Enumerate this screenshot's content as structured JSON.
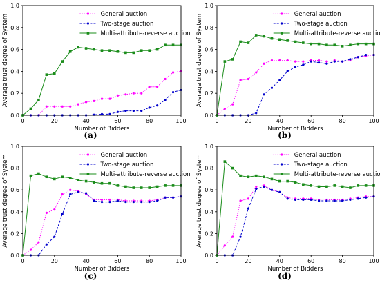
{
  "chart_data": [
    {
      "panel_label": "(a)",
      "type": "line",
      "xlabel": "Number of Bidders",
      "ylabel": "Average trust degree of System",
      "xlim": [
        0,
        100
      ],
      "ylim": [
        0,
        1.0
      ],
      "xticks": [
        0,
        20,
        40,
        60,
        80,
        100
      ],
      "yticks": [
        "0.0",
        "0.2",
        "0.4",
        "0.6",
        "0.8",
        "1.0"
      ],
      "legend_position": "top-right",
      "x": [
        0,
        5,
        10,
        15,
        20,
        25,
        30,
        35,
        40,
        45,
        50,
        55,
        60,
        65,
        70,
        75,
        80,
        85,
        90,
        95,
        100
      ],
      "series": [
        {
          "name": "General auction",
          "color": "#ff00ff",
          "style": "dotted",
          "marker": "circle",
          "values": [
            0.0,
            0.0,
            0.0,
            0.08,
            0.08,
            0.08,
            0.08,
            0.1,
            0.12,
            0.13,
            0.15,
            0.15,
            0.18,
            0.19,
            0.2,
            0.2,
            0.26,
            0.26,
            0.33,
            0.39,
            0.4
          ]
        },
        {
          "name": "Two-stage auction",
          "color": "#0000cc",
          "style": "dashed",
          "marker": "circle",
          "values": [
            0.0,
            0.0,
            0.0,
            0.0,
            0.0,
            0.0,
            0.0,
            0.0,
            0.0,
            0.005,
            0.01,
            0.01,
            0.03,
            0.04,
            0.04,
            0.04,
            0.07,
            0.09,
            0.14,
            0.21,
            0.23
          ]
        },
        {
          "name": "Multi-attribute-reverse auction",
          "color": "#1a8c1a",
          "style": "solid",
          "marker": "square",
          "values": [
            0.0,
            0.06,
            0.14,
            0.37,
            0.38,
            0.49,
            0.58,
            0.62,
            0.61,
            0.6,
            0.59,
            0.59,
            0.58,
            0.57,
            0.57,
            0.59,
            0.59,
            0.6,
            0.64,
            0.64,
            0.64
          ]
        }
      ]
    },
    {
      "panel_label": "(b)",
      "type": "line",
      "xlabel": "Number of Bidders",
      "ylabel": "Average trust degree of System",
      "xlim": [
        0,
        100
      ],
      "ylim": [
        0,
        1.0
      ],
      "xticks": [
        0,
        20,
        40,
        60,
        80,
        100
      ],
      "yticks": [
        "0.0",
        "0.2",
        "0.4",
        "0.6",
        "0.8",
        "1.0"
      ],
      "legend_position": "top-right",
      "x": [
        0,
        5,
        10,
        15,
        20,
        25,
        30,
        35,
        40,
        45,
        50,
        55,
        60,
        65,
        70,
        75,
        80,
        85,
        90,
        95,
        100
      ],
      "series": [
        {
          "name": "General auction",
          "color": "#ff00ff",
          "style": "dotted",
          "marker": "circle",
          "values": [
            0.0,
            0.06,
            0.1,
            0.32,
            0.33,
            0.39,
            0.47,
            0.5,
            0.5,
            0.5,
            0.49,
            0.49,
            0.5,
            0.5,
            0.49,
            0.5,
            0.49,
            0.5,
            0.53,
            0.54,
            0.55
          ]
        },
        {
          "name": "Two-stage auction",
          "color": "#0000cc",
          "style": "dashed",
          "marker": "circle",
          "values": [
            0.0,
            0.0,
            0.0,
            0.0,
            0.0,
            0.02,
            0.19,
            0.25,
            0.32,
            0.4,
            0.44,
            0.46,
            0.49,
            0.48,
            0.47,
            0.49,
            0.49,
            0.51,
            0.53,
            0.55,
            0.55
          ]
        },
        {
          "name": "Multi-attribute-reverse auction",
          "color": "#1a8c1a",
          "style": "solid",
          "marker": "square",
          "values": [
            0.0,
            0.49,
            0.51,
            0.67,
            0.66,
            0.73,
            0.72,
            0.7,
            0.69,
            0.68,
            0.67,
            0.66,
            0.65,
            0.65,
            0.64,
            0.64,
            0.63,
            0.64,
            0.65,
            0.65,
            0.65
          ]
        }
      ]
    },
    {
      "panel_label": "(c)",
      "type": "line",
      "xlabel": "Number of Bidders",
      "ylabel": "Average trust degree of System",
      "xlim": [
        0,
        100
      ],
      "ylim": [
        0,
        1.0
      ],
      "xticks": [
        0,
        20,
        40,
        60,
        80,
        100
      ],
      "yticks": [
        "0.0",
        "0.2",
        "0.4",
        "0.6",
        "0.8",
        "1.0"
      ],
      "legend_position": "top-right",
      "x": [
        0,
        5,
        10,
        15,
        20,
        25,
        30,
        35,
        40,
        45,
        50,
        55,
        60,
        65,
        70,
        75,
        80,
        85,
        90,
        95,
        100
      ],
      "series": [
        {
          "name": "General auction",
          "color": "#ff00ff",
          "style": "dotted",
          "marker": "circle",
          "values": [
            0.0,
            0.05,
            0.12,
            0.39,
            0.42,
            0.56,
            0.6,
            0.59,
            0.56,
            0.51,
            0.51,
            0.51,
            0.51,
            0.5,
            0.5,
            0.5,
            0.5,
            0.51,
            0.53,
            0.53,
            0.54
          ]
        },
        {
          "name": "Two-stage auction",
          "color": "#0000cc",
          "style": "dashed",
          "marker": "circle",
          "values": [
            0.0,
            0.0,
            0.0,
            0.1,
            0.17,
            0.38,
            0.56,
            0.58,
            0.57,
            0.5,
            0.49,
            0.49,
            0.5,
            0.49,
            0.49,
            0.49,
            0.49,
            0.5,
            0.53,
            0.53,
            0.54
          ]
        },
        {
          "name": "Multi-attribute-reverse auction",
          "color": "#1a8c1a",
          "style": "solid",
          "marker": "square",
          "values": [
            0.0,
            0.73,
            0.75,
            0.72,
            0.7,
            0.72,
            0.71,
            0.69,
            0.68,
            0.67,
            0.66,
            0.66,
            0.64,
            0.63,
            0.62,
            0.62,
            0.62,
            0.63,
            0.64,
            0.64,
            0.64
          ]
        }
      ]
    },
    {
      "panel_label": "(d)",
      "type": "line",
      "xlabel": "Number of Bidders",
      "ylabel": "Average trust degree of System",
      "xlim": [
        0,
        100
      ],
      "ylim": [
        0,
        1.0
      ],
      "xticks": [
        0,
        20,
        40,
        60,
        80,
        100
      ],
      "yticks": [
        "0.0",
        "0.2",
        "0.4",
        "0.6",
        "0.8",
        "1.0"
      ],
      "legend_position": "top-right",
      "x": [
        0,
        5,
        10,
        15,
        20,
        25,
        30,
        35,
        40,
        45,
        50,
        55,
        60,
        65,
        70,
        75,
        80,
        85,
        90,
        95,
        100
      ],
      "series": [
        {
          "name": "General auction",
          "color": "#ff00ff",
          "style": "dotted",
          "marker": "circle",
          "values": [
            0.0,
            0.09,
            0.17,
            0.5,
            0.52,
            0.63,
            0.64,
            0.6,
            0.58,
            0.53,
            0.52,
            0.52,
            0.52,
            0.51,
            0.51,
            0.51,
            0.51,
            0.52,
            0.53,
            0.54,
            0.54
          ]
        },
        {
          "name": "Two-stage auction",
          "color": "#0000cc",
          "style": "dashed",
          "marker": "circle",
          "values": [
            0.0,
            0.0,
            0.0,
            0.17,
            0.43,
            0.61,
            0.63,
            0.6,
            0.58,
            0.52,
            0.51,
            0.51,
            0.51,
            0.5,
            0.5,
            0.5,
            0.5,
            0.51,
            0.52,
            0.53,
            0.54
          ]
        },
        {
          "name": "Multi-attribute-reverse auction",
          "color": "#1a8c1a",
          "style": "solid",
          "marker": "square",
          "values": [
            0.0,
            0.86,
            0.8,
            0.73,
            0.72,
            0.73,
            0.72,
            0.7,
            0.68,
            0.68,
            0.67,
            0.65,
            0.64,
            0.63,
            0.63,
            0.64,
            0.63,
            0.62,
            0.64,
            0.64,
            0.64
          ]
        }
      ]
    }
  ]
}
